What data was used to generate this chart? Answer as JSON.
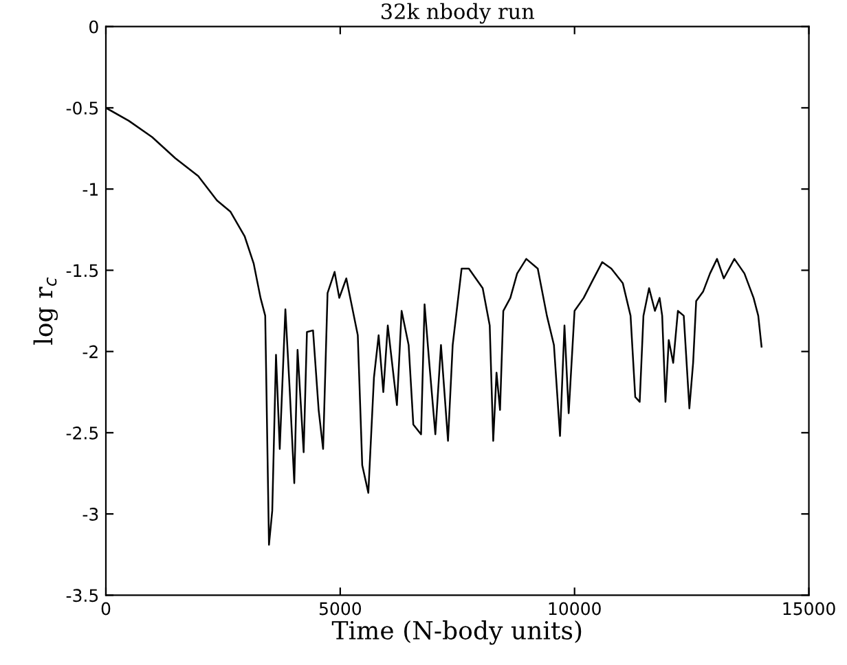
{
  "chart_data": {
    "type": "line",
    "title": "32k nbody run",
    "xlabel": "Time (N-body units)",
    "ylabel": "log r$_{c}$",
    "xlim": [
      0,
      15000
    ],
    "xticks": [
      0,
      5000,
      10000,
      15000
    ],
    "ylim": [
      -3.5,
      0
    ],
    "yticks": [
      -3.5,
      -3,
      -2.5,
      -2,
      -1.5,
      -1,
      -0.5,
      0
    ],
    "grid": false,
    "series": [
      {
        "color": "#000000",
        "x": [
          0,
          490,
          986,
          1480,
          1970,
          2370,
          2660,
          2960,
          3155,
          3300,
          3400,
          3480,
          3550,
          3630,
          3710,
          3830,
          3925,
          4020,
          4090,
          4220,
          4290,
          4420,
          4540,
          4635,
          4730,
          4880,
          4980,
          5130,
          5375,
          5470,
          5600,
          5720,
          5820,
          5920,
          6015,
          6210,
          6310,
          6460,
          6560,
          6725,
          6800,
          6900,
          7030,
          7150,
          7300,
          7400,
          7590,
          7745,
          8040,
          8190,
          8265,
          8335,
          8410,
          8480,
          8630,
          8775,
          8970,
          9215,
          9410,
          9560,
          9690,
          9785,
          9875,
          10000,
          10195,
          10390,
          10590,
          10785,
          11030,
          11195,
          11295,
          11390,
          11470,
          11590,
          11715,
          11815,
          11870,
          11940,
          12010,
          12105,
          12205,
          12330,
          12450,
          12530,
          12595,
          12745,
          12890,
          13040,
          13185,
          13410,
          13625,
          13820,
          13920,
          13990
        ],
        "values": [
          -0.5,
          -0.58,
          -0.68,
          -0.81,
          -0.92,
          -1.07,
          -1.14,
          -1.29,
          -1.46,
          -1.67,
          -1.78,
          -3.19,
          -2.98,
          -2.02,
          -2.6,
          -1.74,
          -2.25,
          -2.81,
          -1.99,
          -2.62,
          -1.88,
          -1.87,
          -2.36,
          -2.6,
          -1.64,
          -1.51,
          -1.67,
          -1.55,
          -1.9,
          -2.7,
          -2.87,
          -2.16,
          -1.9,
          -2.25,
          -1.84,
          -2.33,
          -1.75,
          -1.96,
          -2.45,
          -2.51,
          -1.71,
          -2.07,
          -2.51,
          -1.96,
          -2.55,
          -1.96,
          -1.49,
          -1.49,
          -1.61,
          -1.84,
          -2.55,
          -2.13,
          -2.36,
          -1.75,
          -1.67,
          -1.52,
          -1.43,
          -1.49,
          -1.78,
          -1.96,
          -2.52,
          -1.84,
          -2.38,
          -1.75,
          -1.67,
          -1.56,
          -1.45,
          -1.49,
          -1.58,
          -1.78,
          -2.28,
          -2.31,
          -1.78,
          -1.61,
          -1.75,
          -1.67,
          -1.78,
          -2.31,
          -1.93,
          -2.07,
          -1.75,
          -1.78,
          -2.35,
          -2.07,
          -1.69,
          -1.63,
          -1.52,
          -1.43,
          -1.55,
          -1.43,
          -1.52,
          -1.67,
          -1.78,
          -1.97
        ]
      }
    ]
  }
}
